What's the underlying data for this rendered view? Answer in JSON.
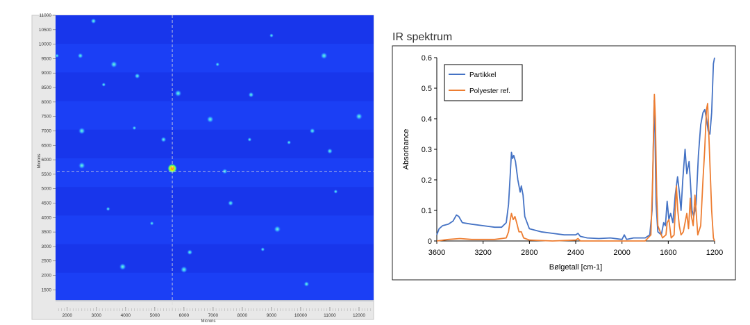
{
  "chart_data": [
    {
      "type": "heatmap",
      "xlabel": "Microns",
      "ylabel": "Microns",
      "xlim": [
        1600,
        12500
      ],
      "ylim": [
        1100,
        11000
      ],
      "x_ticks": [
        2000,
        3000,
        4000,
        5000,
        6000,
        7000,
        8000,
        9000,
        10000,
        11000,
        12000
      ],
      "y_ticks": [
        1500,
        2000,
        2500,
        3000,
        3500,
        4000,
        4500,
        5000,
        5500,
        6000,
        6500,
        7000,
        7500,
        8000,
        8500,
        9000,
        9500,
        10000,
        10500,
        11000
      ],
      "crosshair": {
        "x": 5600,
        "y": 5600
      },
      "hotspot": {
        "x": 5600,
        "y": 5700
      },
      "particles": [
        {
          "x": 1650,
          "y": 9600
        },
        {
          "x": 2450,
          "y": 9600
        },
        {
          "x": 3600,
          "y": 9300
        },
        {
          "x": 3250,
          "y": 8600
        },
        {
          "x": 4400,
          "y": 8900
        },
        {
          "x": 5800,
          "y": 8300
        },
        {
          "x": 7150,
          "y": 9300
        },
        {
          "x": 8300,
          "y": 8250
        },
        {
          "x": 2500,
          "y": 7000
        },
        {
          "x": 4300,
          "y": 7100
        },
        {
          "x": 5300,
          "y": 6700
        },
        {
          "x": 6900,
          "y": 7400
        },
        {
          "x": 8250,
          "y": 6700
        },
        {
          "x": 10400,
          "y": 7000
        },
        {
          "x": 2500,
          "y": 5800
        },
        {
          "x": 9600,
          "y": 6600
        },
        {
          "x": 11000,
          "y": 6300
        },
        {
          "x": 12000,
          "y": 7500
        },
        {
          "x": 3400,
          "y": 4300
        },
        {
          "x": 7600,
          "y": 4500
        },
        {
          "x": 9200,
          "y": 3600
        },
        {
          "x": 11200,
          "y": 4900
        },
        {
          "x": 6200,
          "y": 2800
        },
        {
          "x": 6000,
          "y": 2200
        },
        {
          "x": 8700,
          "y": 2900
        },
        {
          "x": 10200,
          "y": 1700
        },
        {
          "x": 3900,
          "y": 2300
        },
        {
          "x": 4900,
          "y": 3800
        },
        {
          "x": 7400,
          "y": 5600
        },
        {
          "x": 10800,
          "y": 9600
        },
        {
          "x": 9000,
          "y": 10300
        },
        {
          "x": 2900,
          "y": 10800
        }
      ]
    },
    {
      "type": "line",
      "title": "IR spektrum",
      "xlabel": "Bølgetall [cm-1]",
      "ylabel": "Absorbance",
      "xlim": [
        3600,
        1200
      ],
      "ylim": [
        0,
        0.6
      ],
      "x_ticks": [
        3600,
        3200,
        2800,
        2400,
        2000,
        1600,
        1200
      ],
      "y_ticks": [
        0,
        0.1,
        0.2,
        0.3,
        0.4,
        0.5,
        0.6
      ],
      "grid": false,
      "legend_position": "top-left",
      "series": [
        {
          "name": "Partikkel",
          "color": "#4472C4",
          "points": [
            [
              3600,
              0.02
            ],
            [
              3580,
              0.04
            ],
            [
              3550,
              0.05
            ],
            [
              3500,
              0.055
            ],
            [
              3460,
              0.065
            ],
            [
              3430,
              0.085
            ],
            [
              3410,
              0.08
            ],
            [
              3380,
              0.06
            ],
            [
              3300,
              0.055
            ],
            [
              3200,
              0.05
            ],
            [
              3100,
              0.045
            ],
            [
              3040,
              0.045
            ],
            [
              3000,
              0.06
            ],
            [
              2980,
              0.12
            ],
            [
              2965,
              0.22
            ],
            [
              2955,
              0.29
            ],
            [
              2945,
              0.27
            ],
            [
              2935,
              0.28
            ],
            [
              2920,
              0.26
            ],
            [
              2900,
              0.2
            ],
            [
              2880,
              0.16
            ],
            [
              2870,
              0.18
            ],
            [
              2855,
              0.15
            ],
            [
              2840,
              0.08
            ],
            [
              2800,
              0.04
            ],
            [
              2700,
              0.03
            ],
            [
              2600,
              0.025
            ],
            [
              2500,
              0.02
            ],
            [
              2400,
              0.02
            ],
            [
              2380,
              0.025
            ],
            [
              2360,
              0.015
            ],
            [
              2300,
              0.01
            ],
            [
              2200,
              0.008
            ],
            [
              2100,
              0.01
            ],
            [
              2000,
              0.005
            ],
            [
              1980,
              0.02
            ],
            [
              1960,
              0.005
            ],
            [
              1900,
              0.01
            ],
            [
              1800,
              0.01
            ],
            [
              1760,
              0.02
            ],
            [
              1740,
              0.1
            ],
            [
              1730,
              0.3
            ],
            [
              1722,
              0.46
            ],
            [
              1715,
              0.35
            ],
            [
              1705,
              0.12
            ],
            [
              1690,
              0.03
            ],
            [
              1660,
              0.02
            ],
            [
              1640,
              0.06
            ],
            [
              1625,
              0.05
            ],
            [
              1610,
              0.13
            ],
            [
              1595,
              0.07
            ],
            [
              1580,
              0.09
            ],
            [
              1560,
              0.06
            ],
            [
              1540,
              0.15
            ],
            [
              1520,
              0.21
            ],
            [
              1505,
              0.16
            ],
            [
              1490,
              0.1
            ],
            [
              1475,
              0.2
            ],
            [
              1455,
              0.3
            ],
            [
              1440,
              0.22
            ],
            [
              1420,
              0.26
            ],
            [
              1410,
              0.2
            ],
            [
              1395,
              0.1
            ],
            [
              1380,
              0.08
            ],
            [
              1360,
              0.12
            ],
            [
              1340,
              0.28
            ],
            [
              1320,
              0.38
            ],
            [
              1300,
              0.42
            ],
            [
              1285,
              0.43
            ],
            [
              1270,
              0.4
            ],
            [
              1255,
              0.36
            ],
            [
              1240,
              0.35
            ],
            [
              1225,
              0.42
            ],
            [
              1210,
              0.58
            ],
            [
              1200,
              0.6
            ]
          ]
        },
        {
          "name": "Polyester ref.",
          "color": "#ED7D31",
          "points": [
            [
              3600,
              0.0
            ],
            [
              3500,
              0.005
            ],
            [
              3400,
              0.008
            ],
            [
              3300,
              0.005
            ],
            [
              3100,
              0.005
            ],
            [
              3000,
              0.01
            ],
            [
              2980,
              0.03
            ],
            [
              2965,
              0.07
            ],
            [
              2955,
              0.09
            ],
            [
              2940,
              0.07
            ],
            [
              2925,
              0.08
            ],
            [
              2910,
              0.06
            ],
            [
              2890,
              0.03
            ],
            [
              2870,
              0.03
            ],
            [
              2850,
              0.01
            ],
            [
              2800,
              0.003
            ],
            [
              2600,
              0.0
            ],
            [
              2400,
              0.003
            ],
            [
              2380,
              0.008
            ],
            [
              2360,
              0.0
            ],
            [
              2200,
              0.0
            ],
            [
              2000,
              0.0
            ],
            [
              1800,
              0.0
            ],
            [
              1750,
              0.02
            ],
            [
              1735,
              0.2
            ],
            [
              1725,
              0.4
            ],
            [
              1720,
              0.48
            ],
            [
              1712,
              0.4
            ],
            [
              1700,
              0.15
            ],
            [
              1690,
              0.05
            ],
            [
              1650,
              0.01
            ],
            [
              1620,
              0.02
            ],
            [
              1610,
              0.06
            ],
            [
              1595,
              0.07
            ],
            [
              1575,
              0.01
            ],
            [
              1550,
              0.02
            ],
            [
              1530,
              0.18
            ],
            [
              1518,
              0.1
            ],
            [
              1505,
              0.05
            ],
            [
              1490,
              0.02
            ],
            [
              1470,
              0.03
            ],
            [
              1455,
              0.06
            ],
            [
              1440,
              0.09
            ],
            [
              1425,
              0.04
            ],
            [
              1410,
              0.14
            ],
            [
              1400,
              0.08
            ],
            [
              1385,
              0.05
            ],
            [
              1370,
              0.15
            ],
            [
              1360,
              0.1
            ],
            [
              1345,
              0.02
            ],
            [
              1320,
              0.05
            ],
            [
              1300,
              0.2
            ],
            [
              1285,
              0.3
            ],
            [
              1270,
              0.43
            ],
            [
              1260,
              0.45
            ],
            [
              1245,
              0.3
            ],
            [
              1225,
              0.1
            ],
            [
              1210,
              0.01
            ],
            [
              1200,
              0.0
            ]
          ]
        }
      ]
    }
  ]
}
